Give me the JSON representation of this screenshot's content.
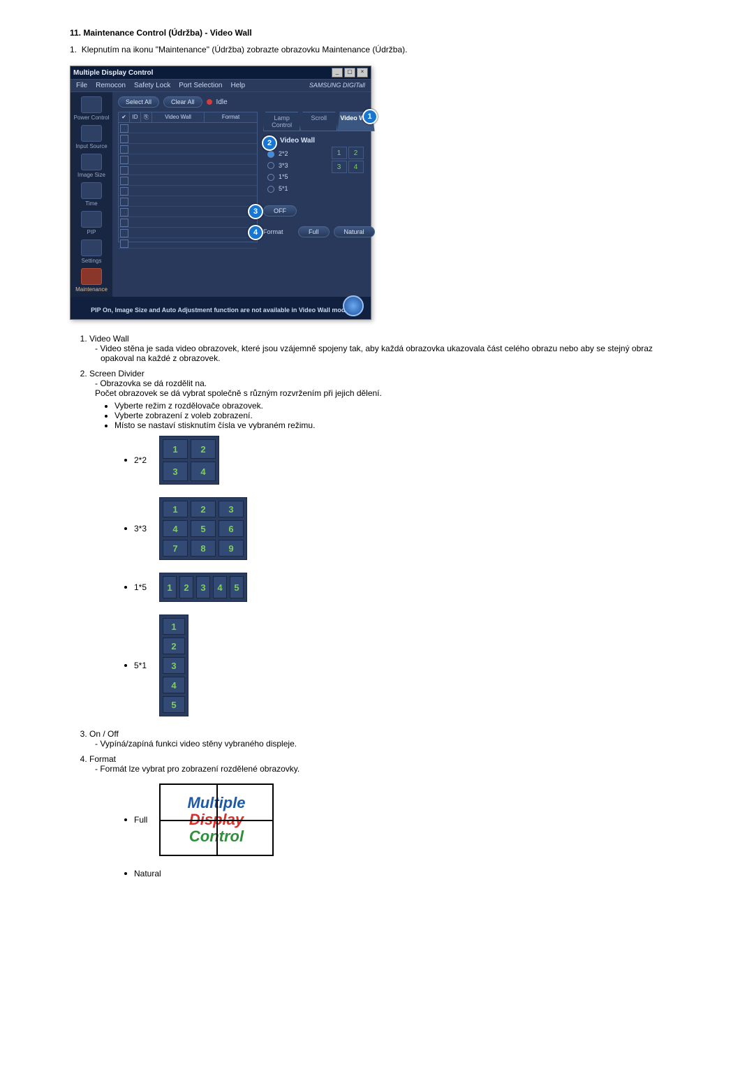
{
  "section": {
    "number": "11.",
    "title": "Maintenance Control (Údržba) - Video Wall",
    "intro_prefix": "1.",
    "intro": "Klepnutím na ikonu \"Maintenance\" (Údržba) zobrazte obrazovku Maintenance (Údržba)."
  },
  "app": {
    "window_title": "Multiple Display Control",
    "menubar": [
      "File",
      "Remocon",
      "Safety Lock",
      "Port Selection",
      "Help"
    ],
    "brand": "SAMSUNG DIGITall",
    "sidebar": [
      {
        "label": "Power Control"
      },
      {
        "label": "Input Source"
      },
      {
        "label": "Image Size"
      },
      {
        "label": "Time"
      },
      {
        "label": "PIP"
      },
      {
        "label": "Settings"
      },
      {
        "label": "Maintenance"
      }
    ],
    "toolbar": {
      "select_all": "Select All",
      "clear_all": "Clear All",
      "idle": "Idle"
    },
    "list": {
      "columns": [
        "",
        "ID",
        "",
        "Video Wall",
        "Format"
      ],
      "row_count": 12
    },
    "tabs": [
      "Lamp Control",
      "Scroll",
      "Video Wall"
    ],
    "panel": {
      "title": "Video Wall",
      "radios": [
        "2*2",
        "3*3",
        "1*5",
        "5*1"
      ],
      "minigrid": [
        "1",
        "2",
        "3",
        "4"
      ],
      "off_label": "OFF",
      "format_label": "Format",
      "full_label": "Full",
      "natural_label": "Natural"
    },
    "callouts": {
      "c1": "1",
      "c2": "2",
      "c3": "3",
      "c4": "4"
    },
    "footer": "PIP On, Image Size and Auto Adjustment function are not available in Video Wall mode."
  },
  "desc": {
    "items": [
      {
        "title": "Video Wall",
        "lines": [
          "Video stěna je sada video obrazovek, které jsou vzájemně spojeny tak, aby každá obrazovka ukazovala část celého obrazu nebo aby se stejný obraz opakoval na každé z obrazovek."
        ]
      },
      {
        "title": "Screen Divider",
        "lines": [
          "Obrazovka se dá rozdělit na.",
          "Počet obrazovek se dá vybrat společně s různým rozvržením při jejich dělení."
        ],
        "bullets": [
          "Vyberte režim z rozdělovače obrazovek.",
          "Vyberte zobrazení z voleb zobrazení.",
          "Místo se nastaví stisknutím čísla ve vybraném režimu."
        ]
      },
      {
        "title": "On / Off",
        "lines": [
          "Vypíná/zapíná funkci video stěny vybraného displeje."
        ]
      },
      {
        "title": "Format",
        "lines": [
          "Formát lze vybrat pro zobrazení rozdělené obrazovky."
        ]
      }
    ]
  },
  "grids": {
    "g2x2": {
      "label": "2*2",
      "cells": [
        "1",
        "2",
        "3",
        "4"
      ]
    },
    "g3x3": {
      "label": "3*3",
      "cells": [
        "1",
        "2",
        "3",
        "4",
        "5",
        "6",
        "7",
        "8",
        "9"
      ]
    },
    "g1x5": {
      "label": "1*5",
      "cells": [
        "1",
        "2",
        "3",
        "4",
        "5"
      ]
    },
    "g5x1": {
      "label": "5*1",
      "cells": [
        "1",
        "2",
        "3",
        "4",
        "5"
      ]
    }
  },
  "format": {
    "full_label": "Full",
    "natural_label": "Natural",
    "words": [
      "Multiple",
      "Display",
      "Control"
    ],
    "colors": [
      "#1e5aa8",
      "#d7322e",
      "#2f8f3a"
    ]
  }
}
